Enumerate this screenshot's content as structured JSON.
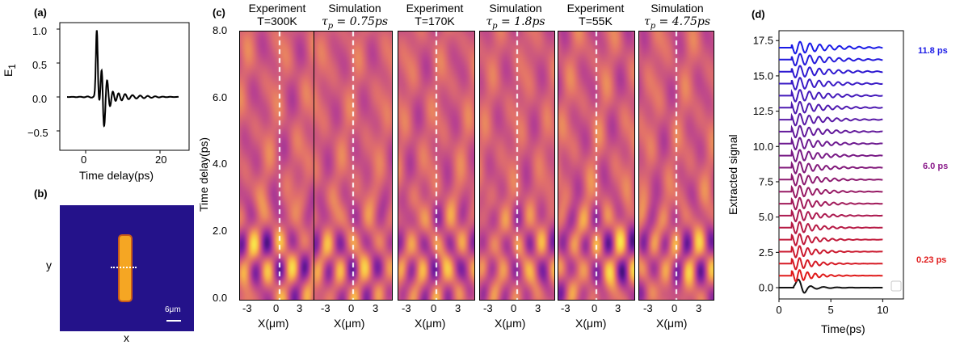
{
  "panel_labels": {
    "a": "(a)",
    "b": "(b)",
    "c": "(c)",
    "d": "(d)"
  },
  "panel_a": {
    "ylabel": "E",
    "ylabel_sub": "1",
    "xlabel": "Time delay(ps)",
    "yticks": [
      "1.0",
      "0.5",
      "0.0",
      "−0.5"
    ],
    "xticks": [
      "0",
      "20"
    ]
  },
  "panel_b": {
    "xlabel": "x",
    "ylabel": "y",
    "scale_label": "6μm",
    "colors": {
      "background": "#24128a",
      "bar": "#f5a623",
      "bar_edge": "#c95a1a"
    }
  },
  "panel_c": {
    "ylabel": "Time delay(ps)",
    "yticks": [
      "8.0",
      "6.0",
      "4.0",
      "2.0",
      "0.0"
    ],
    "xticks": [
      "-3",
      "0",
      "3"
    ],
    "xlabel": "X(μm)",
    "subplots": [
      {
        "line1": "Experiment",
        "line2": "T=300K"
      },
      {
        "line1": "Simulation",
        "tau_sym": "τ",
        "tau_sub": "p",
        "tau_val": " = 0.75",
        "tau_unit": "ps"
      },
      {
        "line1": "Experiment",
        "line2": "T=170K"
      },
      {
        "line1": "Simulation",
        "tau_sym": "τ",
        "tau_sub": "p",
        "tau_val": " = 1.8",
        "tau_unit": "ps"
      },
      {
        "line1": "Experiment",
        "line2": "T=55K"
      },
      {
        "line1": "Simulation",
        "tau_sym": "τ",
        "tau_sub": "p",
        "tau_val": " = 4.75",
        "tau_unit": "ps"
      }
    ],
    "colormap": [
      "#2a0a6e",
      "#7a1fa0",
      "#b94290",
      "#e2716a",
      "#f8b24a",
      "#f9ec4a"
    ]
  },
  "chart_data": {
    "type": "line",
    "xlabel": "Time(ps)",
    "ylabel": "Extracted signal",
    "xlim": [
      0,
      12
    ],
    "ylim": [
      -0.8,
      18.2
    ],
    "xticks": [
      "0",
      "5",
      "10"
    ],
    "yticks": [
      "0.0",
      "2.5",
      "5.0",
      "7.5",
      "10.0",
      "12.5",
      "15.0",
      "17.5"
    ],
    "annotations": [
      {
        "text": "11.8 ps",
        "color": "#1a1ae6"
      },
      {
        "text": "6.0 ps",
        "color": "#8a1a8a"
      },
      {
        "text": "0.23 ps",
        "color": "#e01a1a"
      }
    ],
    "series_count": 21,
    "offset_step": 0.85,
    "time_range": [
      0,
      10
    ],
    "start_color": "#e01a1a",
    "end_color": "#1a1ae6",
    "reference_color": "#111111"
  }
}
